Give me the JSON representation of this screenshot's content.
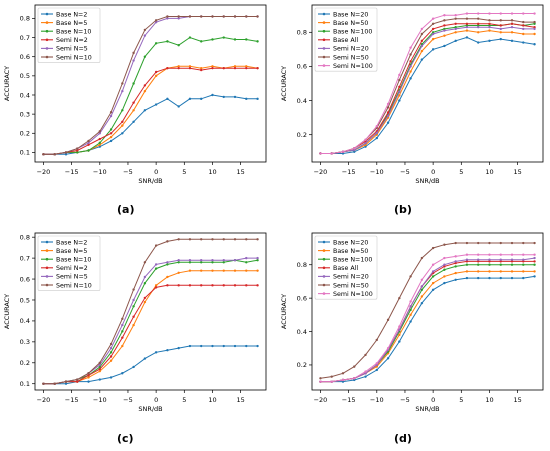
{
  "figure": {
    "panel_labels": [
      "(a)",
      "(b)",
      "(c)",
      "(d)"
    ]
  },
  "chart_data": [
    {
      "type": "line",
      "panel": "(a)",
      "xlabel": "SNR/dB",
      "ylabel": "ACCURACY",
      "xlim": [
        -21.5,
        19.5
      ],
      "ylim": [
        0.05,
        0.87
      ],
      "xticks": [
        -20,
        -15,
        -10,
        -5,
        0,
        5,
        10,
        15
      ],
      "yticks": [
        0.1,
        0.2,
        0.3,
        0.4,
        0.5,
        0.6,
        0.7,
        0.8
      ],
      "legend": "top-left",
      "x": [
        -20,
        -18,
        -16,
        -14,
        -12,
        -10,
        -8,
        -6,
        -4,
        -2,
        0,
        2,
        4,
        6,
        8,
        10,
        12,
        14,
        16,
        18
      ],
      "series": [
        {
          "name": "Base N=2",
          "color": "#1f77b4",
          "values": [
            0.09,
            0.09,
            0.09,
            0.1,
            0.11,
            0.13,
            0.16,
            0.2,
            0.26,
            0.32,
            0.35,
            0.38,
            0.34,
            0.38,
            0.38,
            0.4,
            0.39,
            0.39,
            0.38,
            0.38
          ]
        },
        {
          "name": "Base N=5",
          "color": "#ff7f0e",
          "values": [
            0.09,
            0.09,
            0.1,
            0.1,
            0.11,
            0.14,
            0.18,
            0.24,
            0.32,
            0.42,
            0.5,
            0.54,
            0.55,
            0.55,
            0.54,
            0.55,
            0.54,
            0.55,
            0.55,
            0.54
          ]
        },
        {
          "name": "Base N=10",
          "color": "#2ca02c",
          "values": [
            0.09,
            0.09,
            0.1,
            0.1,
            0.11,
            0.15,
            0.22,
            0.32,
            0.46,
            0.6,
            0.67,
            0.68,
            0.66,
            0.7,
            0.68,
            0.69,
            0.7,
            0.69,
            0.69,
            0.68
          ]
        },
        {
          "name": "Semi N=2",
          "color": "#d62728",
          "values": [
            0.09,
            0.09,
            0.1,
            0.11,
            0.14,
            0.17,
            0.2,
            0.26,
            0.36,
            0.45,
            0.52,
            0.54,
            0.54,
            0.54,
            0.53,
            0.54,
            0.54,
            0.54,
            0.54,
            0.54
          ]
        },
        {
          "name": "Semi N=5",
          "color": "#9467bd",
          "values": [
            0.09,
            0.09,
            0.1,
            0.12,
            0.15,
            0.2,
            0.29,
            0.42,
            0.58,
            0.71,
            0.78,
            0.8,
            0.8,
            0.81,
            0.81,
            0.81,
            0.81,
            0.81,
            0.81,
            0.81
          ]
        },
        {
          "name": "Semi N=10",
          "color": "#8c564b",
          "values": [
            0.09,
            0.09,
            0.1,
            0.12,
            0.16,
            0.21,
            0.31,
            0.46,
            0.62,
            0.74,
            0.79,
            0.81,
            0.81,
            0.81,
            0.81,
            0.81,
            0.81,
            0.81,
            0.81,
            0.81
          ]
        }
      ]
    },
    {
      "type": "line",
      "panel": "(b)",
      "xlabel": "SNR/dB",
      "ylabel": "ACCURACY",
      "xlim": [
        -21.5,
        19.5
      ],
      "ylim": [
        0.04,
        0.96
      ],
      "xticks": [
        -20,
        -15,
        -10,
        -5,
        0,
        5,
        10,
        15
      ],
      "yticks": [
        0.2,
        0.4,
        0.6,
        0.8
      ],
      "legend": "top-left",
      "x": [
        -20,
        -18,
        -16,
        -14,
        -12,
        -10,
        -8,
        -6,
        -4,
        -2,
        0,
        2,
        4,
        6,
        8,
        10,
        12,
        14,
        16,
        18
      ],
      "series": [
        {
          "name": "Base N=20",
          "color": "#1f77b4",
          "values": [
            0.09,
            0.09,
            0.09,
            0.1,
            0.13,
            0.18,
            0.27,
            0.4,
            0.53,
            0.64,
            0.7,
            0.72,
            0.75,
            0.77,
            0.74,
            0.75,
            0.76,
            0.75,
            0.74,
            0.73
          ]
        },
        {
          "name": "Base N=50",
          "color": "#ff7f0e",
          "values": [
            0.09,
            0.09,
            0.1,
            0.11,
            0.14,
            0.2,
            0.3,
            0.43,
            0.57,
            0.69,
            0.76,
            0.78,
            0.8,
            0.81,
            0.8,
            0.81,
            0.8,
            0.8,
            0.79,
            0.79
          ]
        },
        {
          "name": "Base N=100",
          "color": "#2ca02c",
          "values": [
            0.09,
            0.09,
            0.1,
            0.11,
            0.15,
            0.21,
            0.32,
            0.46,
            0.61,
            0.73,
            0.8,
            0.82,
            0.83,
            0.84,
            0.84,
            0.84,
            0.84,
            0.85,
            0.84,
            0.85
          ]
        },
        {
          "name": "Base All",
          "color": "#d62728",
          "values": [
            0.09,
            0.09,
            0.1,
            0.12,
            0.16,
            0.22,
            0.33,
            0.48,
            0.63,
            0.75,
            0.82,
            0.84,
            0.85,
            0.85,
            0.85,
            0.85,
            0.84,
            0.85,
            0.84,
            0.83
          ]
        },
        {
          "name": "Semi N=20",
          "color": "#9467bd",
          "values": [
            0.09,
            0.09,
            0.1,
            0.11,
            0.15,
            0.21,
            0.31,
            0.45,
            0.6,
            0.72,
            0.79,
            0.81,
            0.82,
            0.83,
            0.83,
            0.83,
            0.82,
            0.83,
            0.82,
            0.82
          ]
        },
        {
          "name": "Semi N=50",
          "color": "#8c564b",
          "values": [
            0.09,
            0.09,
            0.1,
            0.12,
            0.17,
            0.24,
            0.36,
            0.52,
            0.67,
            0.79,
            0.85,
            0.87,
            0.88,
            0.88,
            0.88,
            0.87,
            0.87,
            0.87,
            0.86,
            0.86
          ]
        },
        {
          "name": "Semi N=100",
          "color": "#e377c2",
          "values": [
            0.09,
            0.09,
            0.1,
            0.12,
            0.17,
            0.25,
            0.38,
            0.55,
            0.71,
            0.82,
            0.88,
            0.9,
            0.9,
            0.91,
            0.91,
            0.91,
            0.91,
            0.91,
            0.91,
            0.91
          ]
        }
      ]
    },
    {
      "type": "line",
      "panel": "(c)",
      "xlabel": "SNR/dB",
      "ylabel": "ACCURACY",
      "xlim": [
        -21.5,
        19.5
      ],
      "ylim": [
        0.07,
        0.82
      ],
      "xticks": [
        -20,
        -15,
        -10,
        -5,
        0,
        5,
        10,
        15
      ],
      "yticks": [
        0.1,
        0.2,
        0.3,
        0.4,
        0.5,
        0.6,
        0.7,
        0.8
      ],
      "legend": "top-left",
      "x": [
        -20,
        -18,
        -16,
        -14,
        -12,
        -10,
        -8,
        -6,
        -4,
        -2,
        0,
        2,
        4,
        6,
        8,
        10,
        12,
        14,
        16,
        18
      ],
      "series": [
        {
          "name": "Base N=2",
          "color": "#1f77b4",
          "values": [
            0.1,
            0.1,
            0.1,
            0.11,
            0.11,
            0.12,
            0.13,
            0.15,
            0.18,
            0.22,
            0.25,
            0.26,
            0.27,
            0.28,
            0.28,
            0.28,
            0.28,
            0.28,
            0.28,
            0.28
          ]
        },
        {
          "name": "Base N=5",
          "color": "#ff7f0e",
          "values": [
            0.1,
            0.1,
            0.11,
            0.11,
            0.13,
            0.16,
            0.21,
            0.28,
            0.38,
            0.49,
            0.57,
            0.61,
            0.63,
            0.64,
            0.64,
            0.64,
            0.64,
            0.64,
            0.64,
            0.64
          ]
        },
        {
          "name": "Base N=10",
          "color": "#2ca02c",
          "values": [
            0.1,
            0.1,
            0.11,
            0.12,
            0.14,
            0.18,
            0.25,
            0.35,
            0.47,
            0.58,
            0.65,
            0.67,
            0.68,
            0.68,
            0.68,
            0.68,
            0.68,
            0.69,
            0.68,
            0.69
          ]
        },
        {
          "name": "Semi N=2",
          "color": "#d62728",
          "values": [
            0.1,
            0.1,
            0.11,
            0.11,
            0.14,
            0.17,
            0.23,
            0.32,
            0.42,
            0.51,
            0.56,
            0.57,
            0.57,
            0.57,
            0.57,
            0.57,
            0.57,
            0.57,
            0.57,
            0.57
          ]
        },
        {
          "name": "Semi N=5",
          "color": "#9467bd",
          "values": [
            0.1,
            0.1,
            0.11,
            0.12,
            0.15,
            0.19,
            0.27,
            0.38,
            0.5,
            0.61,
            0.67,
            0.68,
            0.69,
            0.69,
            0.69,
            0.69,
            0.69,
            0.69,
            0.7,
            0.7
          ]
        },
        {
          "name": "Semi N=10",
          "color": "#8c564b",
          "values": [
            0.1,
            0.1,
            0.11,
            0.12,
            0.15,
            0.2,
            0.29,
            0.41,
            0.55,
            0.68,
            0.76,
            0.78,
            0.79,
            0.79,
            0.79,
            0.79,
            0.79,
            0.79,
            0.79,
            0.79
          ]
        }
      ]
    },
    {
      "type": "line",
      "panel": "(d)",
      "xlabel": "SNR/dB",
      "ylabel": "ACCURACY",
      "xlim": [
        -21.5,
        19.5
      ],
      "ylim": [
        0.05,
        0.99
      ],
      "xticks": [
        -20,
        -15,
        -10,
        -5,
        0,
        5,
        10,
        15
      ],
      "yticks": [
        0.2,
        0.4,
        0.6,
        0.8
      ],
      "legend": "top-left",
      "x": [
        -20,
        -18,
        -16,
        -14,
        -12,
        -10,
        -8,
        -6,
        -4,
        -2,
        0,
        2,
        4,
        6,
        8,
        10,
        12,
        14,
        16,
        18
      ],
      "series": [
        {
          "name": "Base N=20",
          "color": "#1f77b4",
          "values": [
            0.1,
            0.1,
            0.1,
            0.11,
            0.13,
            0.17,
            0.24,
            0.34,
            0.46,
            0.57,
            0.65,
            0.69,
            0.71,
            0.72,
            0.72,
            0.72,
            0.72,
            0.72,
            0.72,
            0.73
          ]
        },
        {
          "name": "Base N=50",
          "color": "#ff7f0e",
          "values": [
            0.1,
            0.1,
            0.11,
            0.12,
            0.15,
            0.19,
            0.27,
            0.38,
            0.5,
            0.61,
            0.69,
            0.73,
            0.75,
            0.76,
            0.76,
            0.76,
            0.76,
            0.76,
            0.76,
            0.76
          ]
        },
        {
          "name": "Base N=100",
          "color": "#2ca02c",
          "values": [
            0.1,
            0.1,
            0.11,
            0.12,
            0.15,
            0.2,
            0.28,
            0.4,
            0.53,
            0.65,
            0.73,
            0.77,
            0.79,
            0.8,
            0.8,
            0.8,
            0.8,
            0.8,
            0.8,
            0.8
          ]
        },
        {
          "name": "Base All",
          "color": "#d62728",
          "values": [
            0.1,
            0.1,
            0.11,
            0.12,
            0.15,
            0.2,
            0.29,
            0.41,
            0.55,
            0.67,
            0.75,
            0.79,
            0.81,
            0.82,
            0.82,
            0.82,
            0.82,
            0.82,
            0.82,
            0.82
          ]
        },
        {
          "name": "Semi N=20",
          "color": "#9467bd",
          "values": [
            0.1,
            0.1,
            0.11,
            0.12,
            0.15,
            0.2,
            0.29,
            0.41,
            0.55,
            0.67,
            0.76,
            0.8,
            0.82,
            0.83,
            0.83,
            0.83,
            0.83,
            0.83,
            0.83,
            0.84
          ]
        },
        {
          "name": "Semi N=50",
          "color": "#8c564b",
          "values": [
            0.12,
            0.13,
            0.15,
            0.19,
            0.26,
            0.35,
            0.47,
            0.6,
            0.73,
            0.84,
            0.9,
            0.92,
            0.93,
            0.93,
            0.93,
            0.93,
            0.93,
            0.93,
            0.93,
            0.93
          ]
        },
        {
          "name": "Semi N=100",
          "color": "#e377c2",
          "values": [
            0.1,
            0.1,
            0.11,
            0.12,
            0.16,
            0.21,
            0.3,
            0.43,
            0.58,
            0.71,
            0.8,
            0.84,
            0.85,
            0.86,
            0.86,
            0.86,
            0.86,
            0.86,
            0.86,
            0.86
          ]
        }
      ]
    }
  ]
}
